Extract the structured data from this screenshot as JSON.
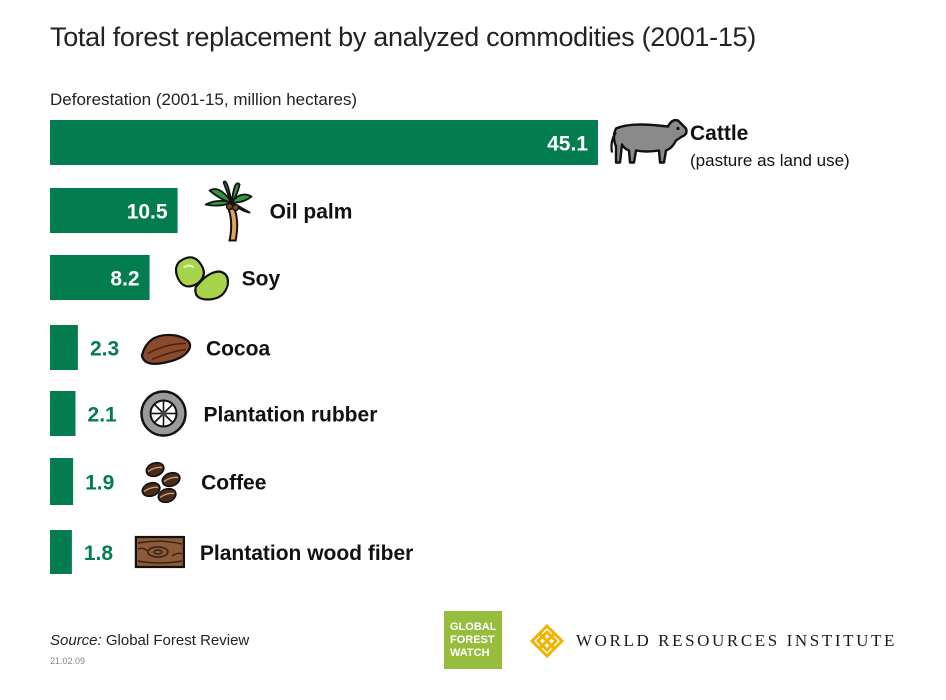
{
  "title": "Total forest replacement by analyzed commodities (2001-15)",
  "subtitle": "Deforestation (2001-15, million hectares)",
  "source": {
    "label": "Source:",
    "text": " Global Forest Review"
  },
  "date": "21.02.09",
  "logos": {
    "gfw_lines": [
      "GLOBAL",
      "FOREST",
      "WATCH"
    ],
    "wri_text": "WORLD RESOURCES INSTITUTE"
  },
  "colors": {
    "bar": "#037d50",
    "value_inside": "#ffffff",
    "value_outside": "#037d50",
    "label": "#111111",
    "gfw": "#97bd3d",
    "wri": "#f0b400"
  },
  "chart_data": {
    "type": "bar",
    "orientation": "horizontal",
    "categories": [
      "Cattle",
      "Oil palm",
      "Soy",
      "Cocoa",
      "Plantation rubber",
      "Coffee",
      "Plantation wood fiber"
    ],
    "sublabels": [
      "(pasture as land use)",
      "",
      "",
      "",
      "",
      "",
      ""
    ],
    "icons": [
      "cow-icon",
      "palm-tree-icon",
      "soybean-icon",
      "cocoa-pod-icon",
      "rubber-tree-icon",
      "coffee-beans-icon",
      "wood-grain-icon"
    ],
    "values": [
      45.1,
      10.5,
      8.2,
      2.3,
      2.1,
      1.9,
      1.8
    ],
    "value_labels": [
      "45.1",
      "10.5",
      "8.2",
      "2.3",
      "2.1",
      "1.9",
      "1.8"
    ],
    "xlim": [
      0,
      45.1
    ],
    "grid": false,
    "legend": "none"
  }
}
